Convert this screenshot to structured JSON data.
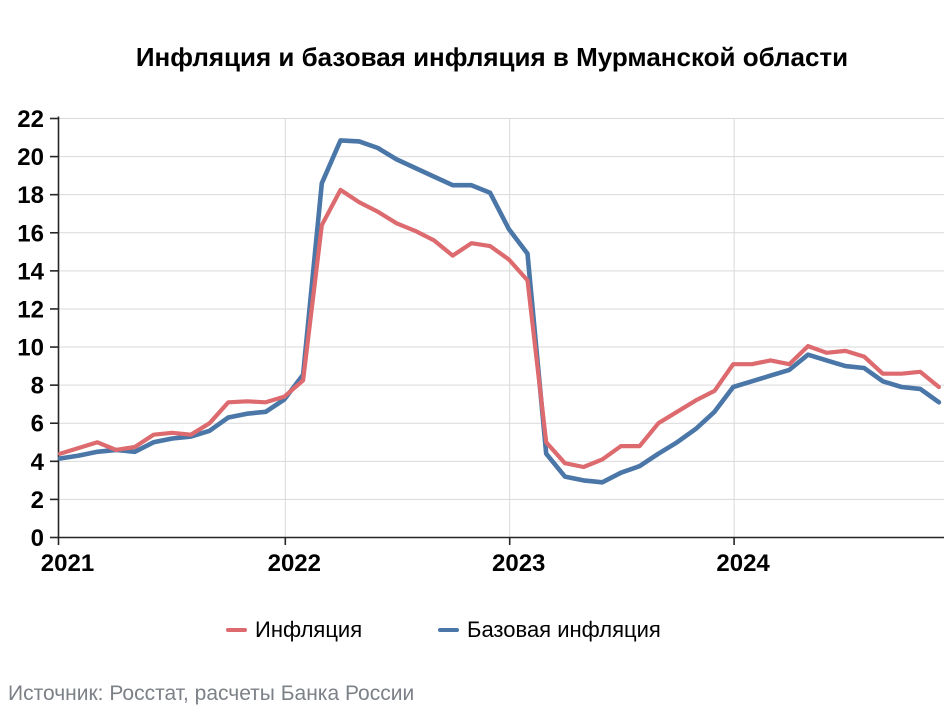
{
  "title": "Инфляция и базовая инфляция в Мурманской области",
  "source": "Источник: Росстат, расчеты Банка России",
  "legend": [
    {
      "label": "Инфляция",
      "color": "#dc6a6e"
    },
    {
      "label": "Базовая инфляция",
      "color": "#4a76a8"
    }
  ],
  "chart_data": {
    "type": "line",
    "title": "Инфляция и базовая инфляция в Мурманской области",
    "x_years": [
      "2021",
      "2022",
      "2023",
      "2024"
    ],
    "x_unit": "month",
    "points_per_year": 12,
    "ylim": [
      0,
      22
    ],
    "y_ticks": [
      0,
      2,
      4,
      6,
      8,
      10,
      12,
      14,
      16,
      18,
      20,
      22
    ],
    "grid": {
      "horizontal": true,
      "vertical_at_years": true
    },
    "legend_position": "bottom",
    "axis_color": "#262626",
    "grid_color": "#d9d9d9",
    "series": [
      {
        "name": "Инфляция",
        "color": "#dc6a6e",
        "values": [
          4.4,
          4.7,
          5.0,
          4.6,
          4.75,
          5.4,
          5.5,
          5.4,
          6.0,
          7.1,
          7.15,
          7.1,
          7.4,
          8.25,
          16.4,
          18.25,
          17.6,
          17.1,
          16.5,
          16.1,
          15.6,
          14.8,
          15.45,
          15.3,
          14.6,
          13.5,
          5.0,
          3.9,
          3.7,
          4.1,
          4.8,
          4.8,
          6.0,
          6.6,
          7.2,
          7.7,
          9.1,
          9.1,
          9.3,
          9.1,
          10.05,
          9.7,
          9.8,
          9.5,
          8.6,
          8.6,
          8.7,
          7.9
        ]
      },
      {
        "name": "Базовая инфляция",
        "color": "#4a76a8",
        "values": [
          4.15,
          4.3,
          4.5,
          4.6,
          4.5,
          5.0,
          5.2,
          5.3,
          5.6,
          6.3,
          6.5,
          6.6,
          7.25,
          8.55,
          18.6,
          20.85,
          20.8,
          20.45,
          19.85,
          19.4,
          18.95,
          18.5,
          18.5,
          18.1,
          16.2,
          14.9,
          4.4,
          3.2,
          3.0,
          2.9,
          3.4,
          3.75,
          4.4,
          5.0,
          5.7,
          6.6,
          7.9,
          8.2,
          8.5,
          8.8,
          9.6,
          9.3,
          9.0,
          8.9,
          8.2,
          7.9,
          7.8,
          7.1
        ]
      }
    ]
  }
}
